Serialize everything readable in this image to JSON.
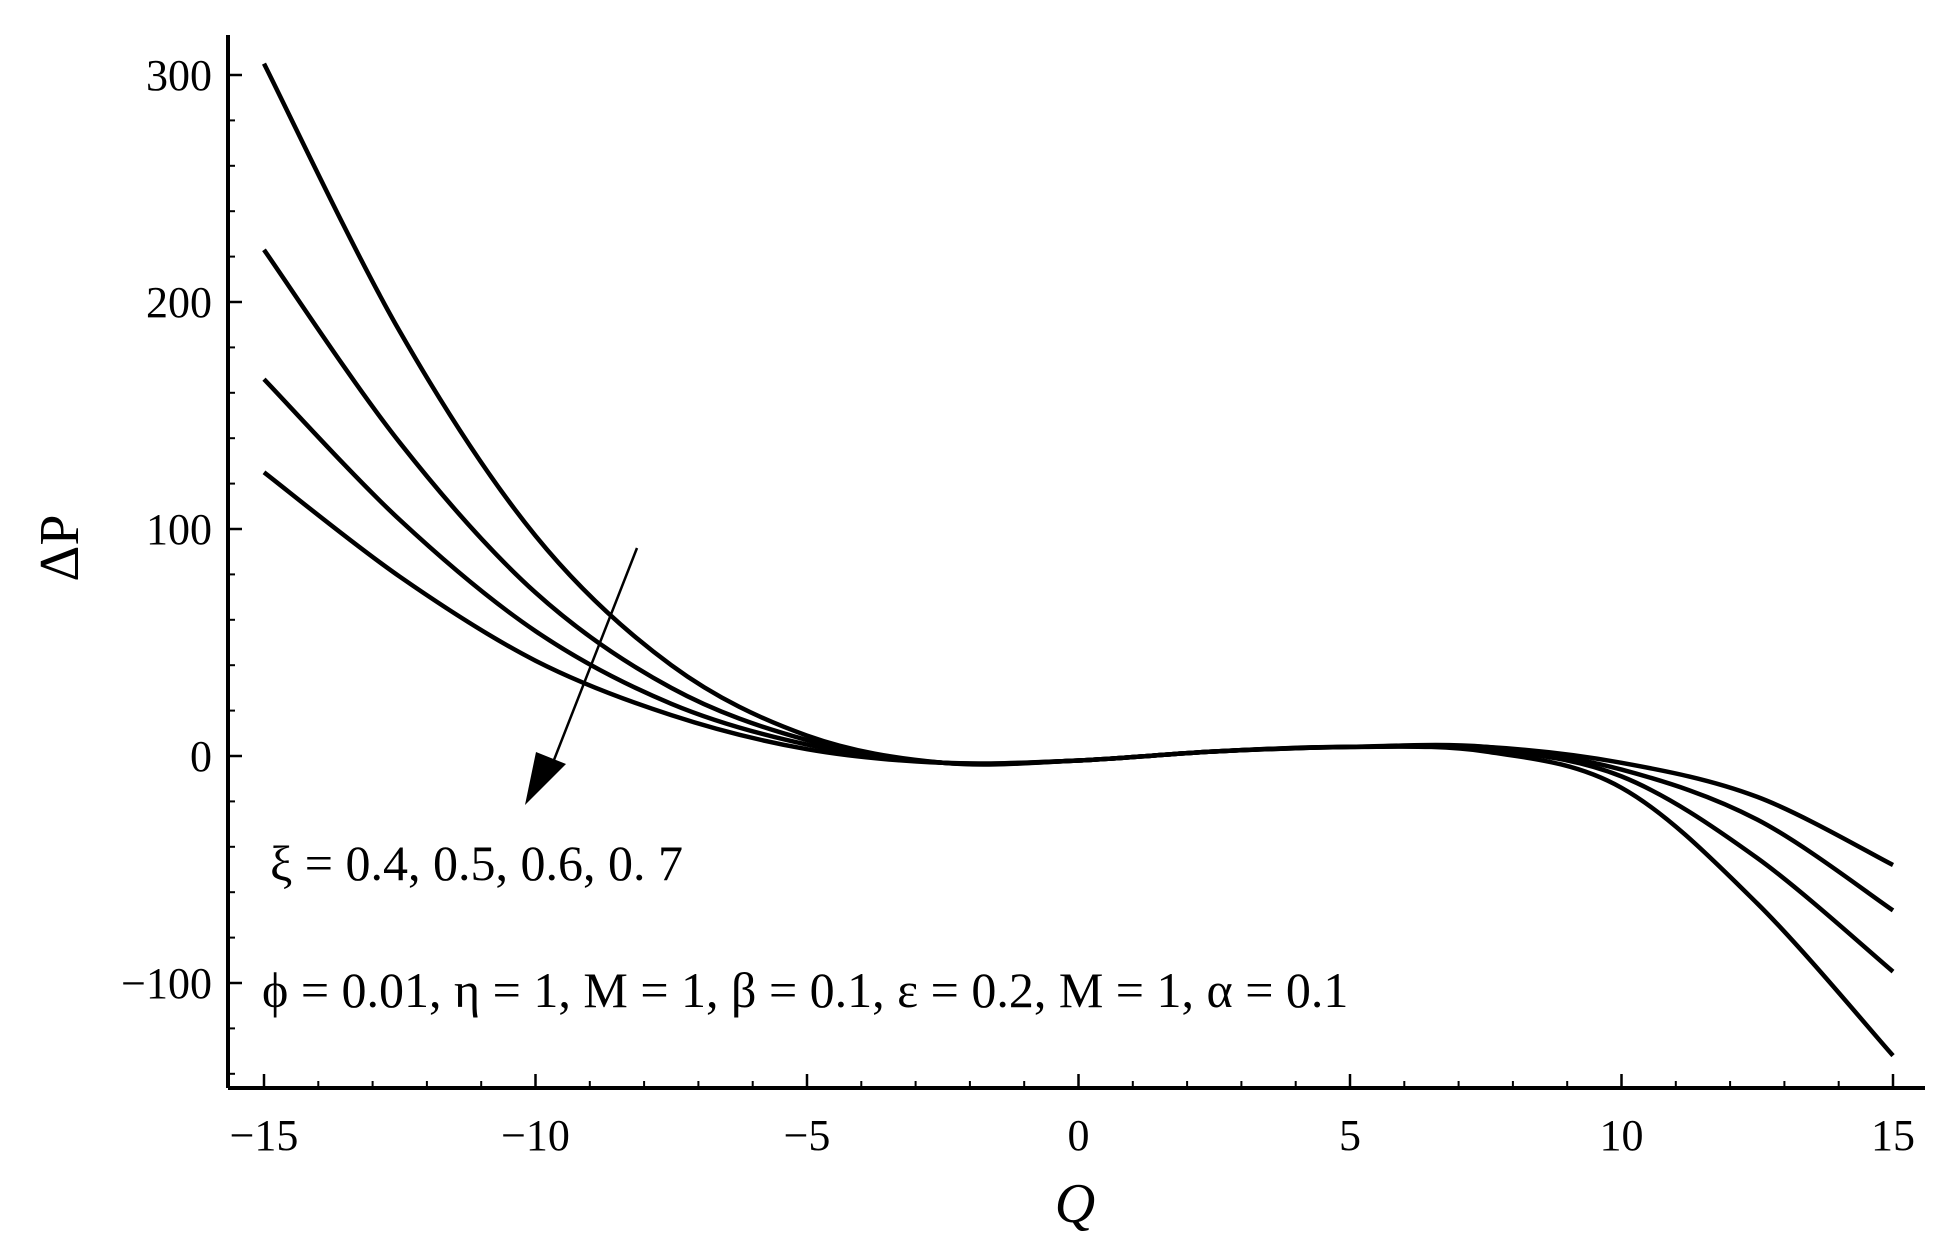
{
  "chart_data": {
    "type": "line",
    "title": "",
    "xlabel": "Q",
    "ylabel": "ΔP",
    "xlim": [
      -15.6,
      15.6
    ],
    "ylim": [
      -145,
      320
    ],
    "xticks": [
      -15,
      -10,
      -5,
      0,
      5,
      10,
      15
    ],
    "xtick_labels": [
      "−15",
      "−10",
      "−5",
      "0",
      "5",
      "10",
      "15"
    ],
    "yticks": [
      -100,
      0,
      100,
      200,
      300
    ],
    "ytick_labels": [
      "−100",
      "0",
      "100",
      "200",
      "300"
    ],
    "grid": false,
    "legend": "none",
    "series": [
      {
        "x": [
          -15,
          -12.5,
          -10,
          -7.5,
          -5,
          -2.5,
          0,
          2.5,
          5,
          7.5,
          10,
          12.5,
          15
        ],
        "values": [
          305,
          187,
          97,
          40,
          9,
          -3,
          -2,
          2,
          4,
          4,
          -3,
          -18,
          -48
        ]
      },
      {
        "x": [
          -15,
          -12.5,
          -10,
          -7.5,
          -5,
          -2.5,
          0,
          2.5,
          5,
          7.5,
          10,
          12.5,
          15
        ],
        "values": [
          223,
          138,
          72,
          30,
          7,
          -3,
          -2,
          2,
          4,
          4,
          -6,
          -28,
          -68
        ]
      },
      {
        "x": [
          -15,
          -12.5,
          -10,
          -7.5,
          -5,
          -2.5,
          0,
          2.5,
          5,
          7.5,
          10,
          12.5,
          15
        ],
        "values": [
          166,
          104,
          55,
          23,
          5,
          -3,
          -2,
          2,
          4,
          3,
          -9,
          -45,
          -95
        ]
      },
      {
        "x": [
          -15,
          -12.5,
          -10,
          -7.5,
          -5,
          -2.5,
          0,
          2.5,
          5,
          7.5,
          10,
          12.5,
          15
        ],
        "values": [
          125,
          79,
          42,
          18,
          3,
          -3,
          -2,
          2,
          4,
          2,
          -14,
          -65,
          -132
        ]
      }
    ],
    "annotations": {
      "arrow_label": "ξ = 0.4, 0.5, 0.6, 0. 7",
      "params": "ϕ  = 0.01, η = 1, M = 1, β = 0.1, ε = 0.2, M = 1, α = 0.1"
    }
  }
}
